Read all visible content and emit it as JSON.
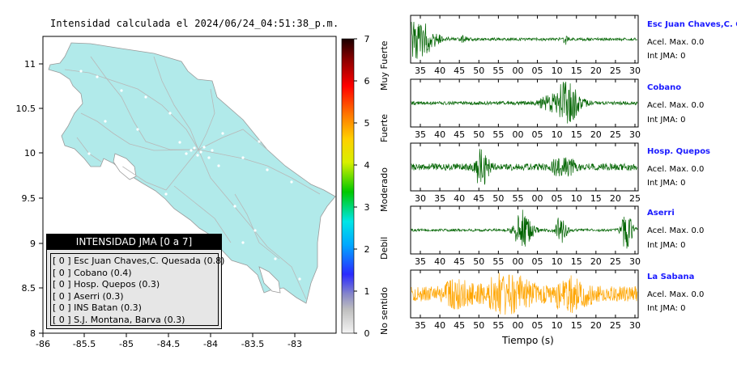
{
  "map": {
    "title": "Intensidad calculada el 2024/06/24_04:51:38_p.m.",
    "x_ticks": [
      "-86",
      "-85.5",
      "-85",
      "-84.5",
      "-84",
      "-83.5",
      "-83"
    ],
    "y_ticks": [
      "11",
      "10.5",
      "10",
      "9.5",
      "9",
      "8.5",
      "8"
    ],
    "land_color": "#b1eaea",
    "legend": {
      "title": "INTENSIDAD JMA [0 a 7]",
      "items": [
        "[ 0 ]  Esc Juan Chaves,C. Quesada (0.8)",
        "[ 0 ]  Cobano (0.4)",
        "[ 0 ]  Hosp. Quepos (0.3)",
        "[ 0 ]  Aserri (0.3)",
        "[ 0 ]  INS Batan (0.3)",
        "[ 0 ]  S.J. Montana, Barva (0.3)"
      ]
    }
  },
  "colorbar": {
    "ticks": [
      "7",
      "6",
      "5",
      "4",
      "3",
      "2",
      "1",
      "0"
    ],
    "labels": [
      "Muy Fuerte",
      "Fuerte",
      "Moderado",
      "Debil",
      "No sentido"
    ]
  },
  "waveforms": {
    "xlabel": "Tiempo (s)",
    "stations": [
      {
        "name": "Esc Juan Chaves,C. Qu",
        "acel": "Acel. Max. 0.0",
        "int": "Int JMA: 0",
        "color": "#006400",
        "ticks": [
          "35",
          "40",
          "45",
          "50",
          "55",
          "00",
          "05",
          "10",
          "15",
          "20",
          "25",
          "30"
        ],
        "bursts": [
          [
            0.03,
            0.9,
            0.05
          ],
          [
            0.68,
            0.25,
            0.01
          ],
          [
            0.23,
            0.15,
            0.01
          ]
        ],
        "noise": 0.07
      },
      {
        "name": "Cobano",
        "acel": "Acel. Max. 0.0",
        "int": "Int JMA: 0",
        "color": "#006400",
        "ticks": [
          "35",
          "40",
          "45",
          "50",
          "55",
          "00",
          "05",
          "10",
          "15",
          "20",
          "25",
          "30"
        ],
        "bursts": [
          [
            0.69,
            0.85,
            0.04
          ],
          [
            0.62,
            0.3,
            0.05
          ]
        ],
        "noise": 0.08
      },
      {
        "name": "Hosp. Quepos",
        "acel": "Acel. Max. 0.0",
        "int": "Int JMA: 0",
        "color": "#006400",
        "ticks": [
          "30",
          "35",
          "40",
          "45",
          "50",
          "55",
          "00",
          "05",
          "10",
          "15",
          "20",
          "25"
        ],
        "bursts": [
          [
            0.31,
            1.0,
            0.02
          ],
          [
            0.65,
            0.3,
            0.03
          ],
          [
            0.7,
            0.3,
            0.02
          ]
        ],
        "noise": 0.16
      },
      {
        "name": "Aserri",
        "acel": "Acel. Max. 0.0",
        "int": "Int JMA: 0",
        "color": "#006400",
        "ticks": [
          "35",
          "40",
          "45",
          "50",
          "55",
          "00",
          "05",
          "10",
          "15",
          "20",
          "25",
          "30"
        ],
        "bursts": [
          [
            0.49,
            0.9,
            0.03
          ],
          [
            0.66,
            0.6,
            0.02
          ],
          [
            0.95,
            0.9,
            0.02
          ]
        ],
        "noise": 0.06
      },
      {
        "name": "La Sabana",
        "acel": "Acel. Max. 0.0",
        "int": "Int JMA: 0",
        "color": "#ffa500",
        "ticks": [
          "35",
          "40",
          "45",
          "50",
          "55",
          "00",
          "05",
          "10",
          "15",
          "20",
          "25",
          "30"
        ],
        "bursts": [
          [
            0.42,
            0.7,
            0.08
          ],
          [
            0.7,
            0.55,
            0.06
          ],
          [
            0.2,
            0.4,
            0.05
          ]
        ],
        "noise": 0.35
      }
    ]
  },
  "chart_data": [
    {
      "type": "map",
      "title": "Intensidad calculada el 2024/06/24_04:51:38_p.m.",
      "xlim": [
        -86,
        -82.5
      ],
      "ylim": [
        8,
        11.3
      ],
      "stations": [
        {
          "name": "Esc Juan Chaves,C. Quesada",
          "jma_class": 0,
          "value": 0.8
        },
        {
          "name": "Cobano",
          "jma_class": 0,
          "value": 0.4
        },
        {
          "name": "Hosp. Quepos",
          "jma_class": 0,
          "value": 0.3
        },
        {
          "name": "Aserri",
          "jma_class": 0,
          "value": 0.3
        },
        {
          "name": "INS Batan",
          "jma_class": 0,
          "value": 0.3
        },
        {
          "name": "S.J. Montana, Barva",
          "jma_class": 0,
          "value": 0.3
        }
      ]
    },
    {
      "type": "heatmap",
      "scale": [
        0,
        7
      ],
      "categories": [
        "No sentido",
        "Debil",
        "Moderado",
        "Fuerte",
        "Muy Fuerte"
      ]
    },
    {
      "type": "line",
      "xlabel": "Tiempo (s)",
      "series": [
        {
          "name": "Esc Juan Chaves,C. Qu",
          "acel_max": 0.0,
          "int_jma": 0
        },
        {
          "name": "Cobano",
          "acel_max": 0.0,
          "int_jma": 0
        },
        {
          "name": "Hosp. Quepos",
          "acel_max": 0.0,
          "int_jma": 0
        },
        {
          "name": "Aserri",
          "acel_max": 0.0,
          "int_jma": 0
        },
        {
          "name": "La Sabana",
          "acel_max": 0.0,
          "int_jma": 0
        }
      ]
    }
  ]
}
